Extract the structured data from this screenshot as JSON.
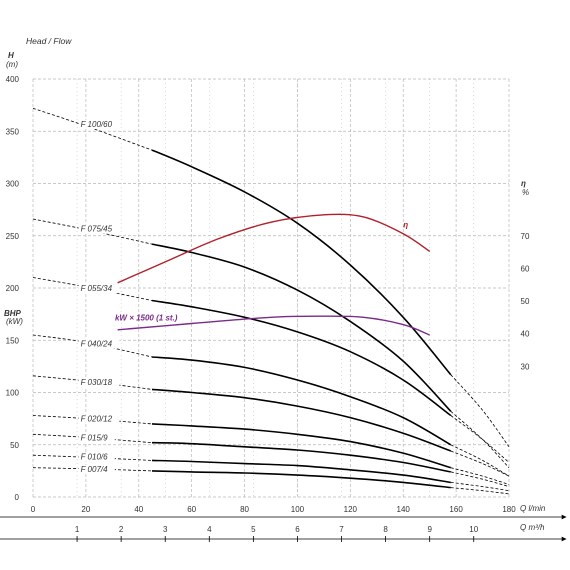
{
  "chart_data": {
    "type": "line",
    "title": "Head / Flow",
    "y_axis": {
      "symbol": "H",
      "unit": "(m)",
      "min": 0,
      "max": 400,
      "ticks": [
        0,
        50,
        100,
        150,
        200,
        250,
        300,
        350,
        400
      ]
    },
    "x_axis": {
      "min": 0,
      "max": 180,
      "ticks": [
        0,
        20,
        40,
        60,
        80,
        100,
        120,
        140,
        160,
        180
      ],
      "label": "Q l/min"
    },
    "x_axis_secondary": {
      "ticks": [
        1,
        2,
        3,
        4,
        5,
        6,
        7,
        8,
        9,
        10
      ],
      "label": "Q m³/h"
    },
    "bhp_axis": {
      "symbol": "BHP",
      "unit": "(kW)"
    },
    "eff_axis": {
      "symbol": "η",
      "unit": "%",
      "ticks": [
        30,
        40,
        50,
        60,
        70
      ]
    },
    "grid": true,
    "series": [
      {
        "name": "F 100/60",
        "label_at": [
          18,
          355
        ],
        "dashed_start": [
          [
            0,
            372
          ],
          [
            20,
            355
          ],
          [
            45,
            332
          ]
        ],
        "points": [
          [
            45,
            332
          ],
          [
            60,
            316
          ],
          [
            80,
            292
          ],
          [
            100,
            262
          ],
          [
            120,
            222
          ],
          [
            140,
            172
          ],
          [
            158,
            117
          ]
        ],
        "dashed_end": [
          [
            158,
            117
          ],
          [
            170,
            83
          ],
          [
            180,
            48
          ]
        ]
      },
      {
        "name": "F 075/45",
        "label_at": [
          18,
          255
        ],
        "dashed_start": [
          [
            0,
            266
          ],
          [
            20,
            256
          ],
          [
            45,
            242
          ]
        ],
        "points": [
          [
            45,
            242
          ],
          [
            60,
            234
          ],
          [
            80,
            220
          ],
          [
            100,
            198
          ],
          [
            120,
            168
          ],
          [
            140,
            130
          ],
          [
            158,
            82
          ]
        ],
        "dashed_end": [
          [
            158,
            82
          ],
          [
            170,
            55
          ],
          [
            180,
            28
          ]
        ]
      },
      {
        "name": "F 055/34",
        "label_at": [
          18,
          198
        ],
        "dashed_start": [
          [
            0,
            210
          ],
          [
            20,
            201
          ],
          [
            45,
            188
          ]
        ],
        "points": [
          [
            45,
            188
          ],
          [
            60,
            182
          ],
          [
            80,
            172
          ],
          [
            100,
            158
          ],
          [
            120,
            139
          ],
          [
            140,
            112
          ],
          [
            158,
            78
          ]
        ],
        "dashed_end": [
          [
            158,
            78
          ],
          [
            170,
            55
          ],
          [
            180,
            33
          ]
        ]
      },
      {
        "name": "F 040/24",
        "label_at": [
          18,
          145
        ],
        "dashed_start": [
          [
            0,
            155
          ],
          [
            20,
            148
          ],
          [
            45,
            134
          ]
        ],
        "points": [
          [
            45,
            134
          ],
          [
            60,
            131
          ],
          [
            80,
            124
          ],
          [
            100,
            112
          ],
          [
            120,
            96
          ],
          [
            140,
            76
          ],
          [
            158,
            50
          ]
        ],
        "dashed_end": [
          [
            158,
            50
          ],
          [
            170,
            35
          ],
          [
            180,
            20
          ]
        ]
      },
      {
        "name": "F 030/18",
        "label_at": [
          18,
          108
        ],
        "dashed_start": [
          [
            0,
            116
          ],
          [
            20,
            111
          ],
          [
            45,
            103
          ]
        ],
        "points": [
          [
            45,
            103
          ],
          [
            60,
            100
          ],
          [
            80,
            95
          ],
          [
            100,
            87
          ],
          [
            120,
            76
          ],
          [
            140,
            61
          ],
          [
            158,
            44
          ]
        ],
        "dashed_end": [
          [
            158,
            44
          ],
          [
            170,
            32
          ],
          [
            180,
            20
          ]
        ]
      },
      {
        "name": "F 020/12",
        "label_at": [
          18,
          73
        ],
        "dashed_start": [
          [
            0,
            78
          ],
          [
            20,
            75
          ],
          [
            45,
            70
          ]
        ],
        "points": [
          [
            45,
            70
          ],
          [
            60,
            68
          ],
          [
            80,
            65
          ],
          [
            100,
            60
          ],
          [
            120,
            53
          ],
          [
            140,
            42
          ],
          [
            158,
            28
          ]
        ],
        "dashed_end": [
          [
            158,
            28
          ],
          [
            170,
            20
          ],
          [
            180,
            12
          ]
        ]
      },
      {
        "name": "F 015/9",
        "label_at": [
          18,
          55
        ],
        "dashed_start": [
          [
            0,
            60
          ],
          [
            20,
            57
          ],
          [
            45,
            52
          ]
        ],
        "points": [
          [
            45,
            52
          ],
          [
            60,
            51
          ],
          [
            80,
            48
          ],
          [
            100,
            45
          ],
          [
            120,
            40
          ],
          [
            140,
            33
          ],
          [
            158,
            24
          ]
        ],
        "dashed_end": [
          [
            158,
            24
          ],
          [
            170,
            17
          ],
          [
            180,
            10
          ]
        ]
      },
      {
        "name": "F 010/6",
        "label_at": [
          18,
          37
        ],
        "dashed_start": [
          [
            0,
            40
          ],
          [
            20,
            38
          ],
          [
            45,
            35
          ]
        ],
        "points": [
          [
            45,
            35
          ],
          [
            60,
            34
          ],
          [
            80,
            32
          ],
          [
            100,
            30
          ],
          [
            120,
            26
          ],
          [
            140,
            21
          ],
          [
            158,
            14
          ]
        ],
        "dashed_end": [
          [
            158,
            14
          ],
          [
            170,
            10
          ],
          [
            180,
            6
          ]
        ]
      },
      {
        "name": "F 007/4",
        "label_at": [
          18,
          25
        ],
        "dashed_start": [
          [
            0,
            28
          ],
          [
            20,
            27
          ],
          [
            45,
            25
          ]
        ],
        "points": [
          [
            45,
            25
          ],
          [
            60,
            24
          ],
          [
            80,
            23
          ],
          [
            100,
            21
          ],
          [
            120,
            18
          ],
          [
            140,
            14
          ],
          [
            158,
            9
          ]
        ],
        "dashed_end": [
          [
            158,
            9
          ],
          [
            170,
            6
          ],
          [
            180,
            3
          ]
        ]
      }
    ],
    "efficiency_curve": {
      "name": "η",
      "label_at": [
        140,
        258
      ],
      "points": [
        [
          32,
          205
        ],
        [
          50,
          225
        ],
        [
          70,
          247
        ],
        [
          90,
          263
        ],
        [
          110,
          270
        ],
        [
          125,
          268
        ],
        [
          140,
          252
        ],
        [
          150,
          235
        ]
      ]
    },
    "power_curve": {
      "name": "kW × 1500 (1 st.)",
      "label_at": [
        31,
        169
      ],
      "points": [
        [
          32,
          160
        ],
        [
          60,
          166
        ],
        [
          90,
          172
        ],
        [
          110,
          173
        ],
        [
          125,
          172
        ],
        [
          140,
          165
        ],
        [
          150,
          155
        ]
      ]
    }
  },
  "labels": {
    "title": "Head / Flow",
    "h_symbol": "H",
    "h_unit": "(m)",
    "bhp_symbol": "BHP",
    "bhp_unit": "(kW)",
    "eff_symbol": "η",
    "eff_unit": "%",
    "q_lmin": "Q l/min",
    "q_m3h": "Q m³/h",
    "power_label": "kW × 1500 (1 st.)"
  },
  "colors": {
    "curve": "#000000",
    "efficiency": "#b0202a",
    "power": "#7a2a8a",
    "grid": "#b8b8b8",
    "axis": "#000000",
    "text": "#333333"
  }
}
